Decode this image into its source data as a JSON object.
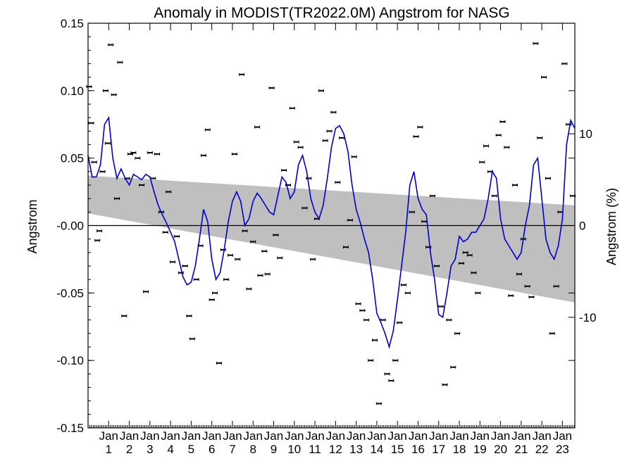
{
  "chart_data": {
    "type": "line",
    "title": "Anomaly in MODIST(TR2022.0M) Angstrom for NASG",
    "xlabel": "",
    "ylabel": "Angstrom",
    "y2label": "Angstrom (%)",
    "x_month_label": "Jan",
    "x_year_labels": [
      "1",
      "2",
      "3",
      "4",
      "5",
      "6",
      "7",
      "8",
      "9",
      "10",
      "11",
      "12",
      "13",
      "14",
      "15",
      "16",
      "17",
      "18",
      "19",
      "20",
      "21",
      "22",
      "23"
    ],
    "xlim": [
      0,
      23.6
    ],
    "ylim": [
      -0.15,
      0.15
    ],
    "y_ticks": [
      0.15,
      0.1,
      0.05,
      0.0,
      -0.05,
      -0.1,
      -0.15
    ],
    "y_tick_labels": [
      "0.15",
      "0.10",
      "0.05",
      "-0.00",
      "-0.05",
      "-0.10",
      "-0.15"
    ],
    "y2_ticks": [
      10,
      0,
      -10
    ],
    "y2_tick_labels": [
      "10",
      "0",
      "-10"
    ],
    "y2_per_unit": 147,
    "band": {
      "upper": [
        [
          0,
          0.037
        ],
        [
          23.6,
          0.015
        ]
      ],
      "lower": [
        [
          0,
          0.009
        ],
        [
          23.6,
          -0.057
        ]
      ],
      "color": "#bfbfbf"
    },
    "zero_line": true,
    "series": [
      {
        "style": "line",
        "color": "#0000cc",
        "x": [
          0.0,
          0.2,
          0.4,
          0.6,
          0.8,
          1.0,
          1.2,
          1.4,
          1.6,
          1.8,
          2.0,
          2.2,
          2.4,
          2.6,
          2.8,
          3.0,
          3.2,
          3.4,
          3.6,
          3.8,
          4.0,
          4.2,
          4.4,
          4.6,
          4.8,
          5.0,
          5.2,
          5.4,
          5.6,
          5.8,
          6.0,
          6.2,
          6.4,
          6.6,
          6.8,
          7.0,
          7.2,
          7.4,
          7.6,
          7.8,
          8.0,
          8.2,
          8.4,
          8.6,
          8.8,
          9.0,
          9.2,
          9.4,
          9.6,
          9.8,
          10.0,
          10.2,
          10.4,
          10.6,
          10.8,
          11.0,
          11.2,
          11.4,
          11.6,
          11.8,
          12.0,
          12.2,
          12.4,
          12.6,
          12.8,
          13.0,
          13.2,
          13.4,
          13.6,
          13.8,
          14.0,
          14.2,
          14.4,
          14.6,
          14.8,
          15.0,
          15.2,
          15.4,
          15.6,
          15.8,
          16.0,
          16.2,
          16.4,
          16.6,
          16.8,
          17.0,
          17.2,
          17.4,
          17.6,
          17.8,
          18.0,
          18.2,
          18.4,
          18.6,
          18.8,
          19.0,
          19.2,
          19.4,
          19.6,
          19.8,
          20.0,
          20.2,
          20.4,
          20.6,
          20.8,
          21.0,
          21.2,
          21.4,
          21.6,
          21.8,
          22.0,
          22.2,
          22.4,
          22.6,
          22.8,
          23.0,
          23.2,
          23.4,
          23.6
        ],
        "values": [
          0.052,
          0.036,
          0.036,
          0.045,
          0.075,
          0.08,
          0.05,
          0.035,
          0.042,
          0.035,
          0.03,
          0.038,
          0.036,
          0.034,
          0.038,
          0.036,
          0.025,
          0.015,
          0.008,
          0.002,
          -0.005,
          -0.012,
          -0.025,
          -0.038,
          -0.044,
          -0.042,
          -0.03,
          -0.01,
          0.012,
          0.003,
          -0.025,
          -0.04,
          -0.035,
          -0.018,
          0.003,
          0.018,
          0.025,
          0.018,
          0.0,
          0.005,
          0.018,
          0.024,
          0.02,
          0.015,
          0.01,
          0.008,
          0.022,
          0.036,
          0.032,
          0.02,
          0.025,
          0.045,
          0.052,
          0.04,
          0.02,
          0.01,
          0.005,
          0.015,
          0.035,
          0.058,
          0.072,
          0.074,
          0.068,
          0.055,
          0.03,
          0.012,
          0.002,
          -0.01,
          -0.02,
          -0.04,
          -0.065,
          -0.072,
          -0.08,
          -0.09,
          -0.078,
          -0.055,
          -0.03,
          -0.005,
          0.03,
          0.04,
          0.02,
          0.012,
          0.008,
          -0.02,
          -0.04,
          -0.066,
          -0.068,
          -0.05,
          -0.03,
          -0.025,
          -0.008,
          -0.012,
          -0.01,
          -0.005,
          -0.005,
          0.0,
          0.005,
          0.02,
          0.04,
          0.035,
          0.005,
          -0.01,
          -0.015,
          -0.02,
          -0.025,
          -0.02,
          0.0,
          0.015,
          0.045,
          0.05,
          0.02,
          -0.01,
          -0.02,
          -0.025,
          -0.015,
          0.005,
          0.06,
          0.078,
          0.072
        ]
      },
      {
        "style": "errorbar-points",
        "color": "#000000",
        "x": [
          0.05,
          0.15,
          0.3,
          0.45,
          0.55,
          0.7,
          0.85,
          0.95,
          1.1,
          1.25,
          1.4,
          1.55,
          1.75,
          1.9,
          2.05,
          2.2,
          2.4,
          2.6,
          2.8,
          3.0,
          3.15,
          3.35,
          3.55,
          3.75,
          3.9,
          4.1,
          4.3,
          4.5,
          4.7,
          4.9,
          5.05,
          5.25,
          5.45,
          5.6,
          5.8,
          6.0,
          6.15,
          6.35,
          6.55,
          6.7,
          6.9,
          7.1,
          7.25,
          7.45,
          7.6,
          7.8,
          8.0,
          8.2,
          8.35,
          8.55,
          8.7,
          8.9,
          9.1,
          9.3,
          9.5,
          9.7,
          9.9,
          10.1,
          10.3,
          10.5,
          10.7,
          10.9,
          11.1,
          11.3,
          11.5,
          11.7,
          11.9,
          12.1,
          12.3,
          12.5,
          12.7,
          12.9,
          13.1,
          13.3,
          13.5,
          13.7,
          13.9,
          14.1,
          14.3,
          14.5,
          14.7,
          14.9,
          15.1,
          15.3,
          15.5,
          15.7,
          15.9,
          16.1,
          16.3,
          16.5,
          16.7,
          16.9,
          17.1,
          17.3,
          17.5,
          17.7,
          17.9,
          18.1,
          18.3,
          18.5,
          18.7,
          18.9,
          19.1,
          19.3,
          19.5,
          19.7,
          19.9,
          20.1,
          20.3,
          20.5,
          20.7,
          20.9,
          21.1,
          21.3,
          21.5,
          21.7,
          21.9,
          22.1,
          22.3,
          22.5,
          22.7,
          22.9,
          23.1,
          23.3,
          23.5
        ],
        "values": [
          0.103,
          0.076,
          0.047,
          -0.011,
          -0.004,
          0.04,
          0.1,
          0.061,
          0.134,
          0.097,
          0.02,
          0.121,
          -0.067,
          0.035,
          0.053,
          0.054,
          0.05,
          0.03,
          -0.049,
          0.054,
          0.035,
          0.053,
          0.01,
          -0.005,
          0.025,
          -0.027,
          -0.008,
          -0.035,
          -0.03,
          -0.067,
          -0.084,
          -0.04,
          -0.015,
          0.052,
          0.071,
          -0.055,
          -0.05,
          -0.102,
          -0.018,
          -0.04,
          -0.022,
          0.053,
          -0.025,
          0.112,
          -0.004,
          -0.047,
          -0.012,
          0.073,
          -0.037,
          -0.019,
          -0.036,
          0.102,
          -0.007,
          -0.024,
          0.041,
          0.03,
          0.087,
          0.062,
          0.058,
          0.013,
          0.035,
          -0.025,
          0.005,
          0.1,
          0.063,
          0.07,
          0.084,
          0.032,
          0.065,
          -0.016,
          0.004,
          0.051,
          -0.058,
          -0.063,
          -0.07,
          -0.1,
          -0.085,
          -0.132,
          -0.07,
          -0.11,
          -0.115,
          -0.1,
          -0.072,
          -0.044,
          -0.05,
          0.01,
          0.066,
          0.073,
          0.003,
          -0.016,
          0.022,
          -0.03,
          -0.06,
          -0.118,
          -0.07,
          -0.105,
          -0.08,
          -0.028,
          -0.02,
          -0.022,
          -0.035,
          -0.05,
          0.047,
          0.059,
          0.04,
          0.022,
          0.067,
          0.077,
          0.058,
          -0.052,
          0.03,
          -0.036,
          -0.01,
          -0.045,
          -0.053,
          0.135,
          0.065,
          0.11,
          0.035,
          -0.08,
          -0.045,
          0.01,
          0.12,
          0.075,
          0.022
        ]
      }
    ]
  }
}
